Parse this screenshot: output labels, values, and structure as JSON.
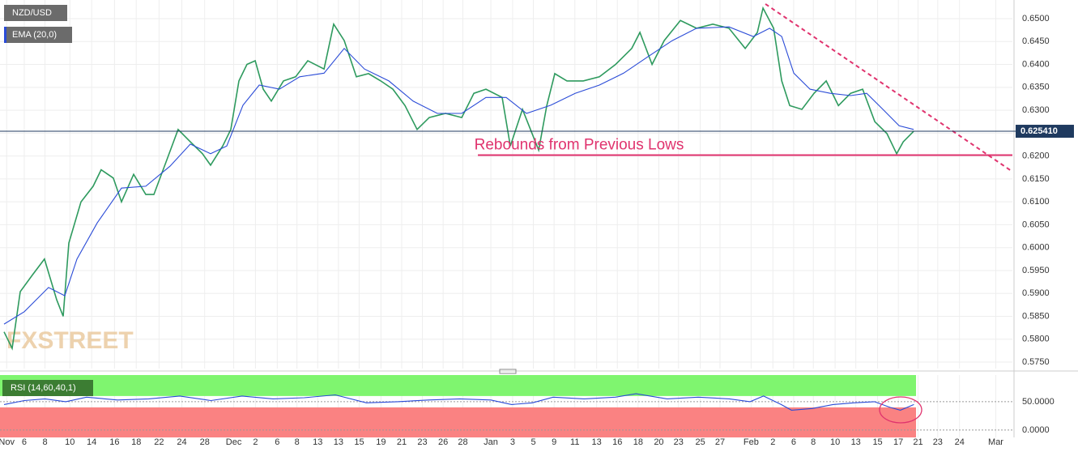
{
  "chart_data": [
    {
      "type": "line",
      "watermark": "FXSTREET",
      "series": [
        {
          "name": "NZD/USD",
          "color": "#2e9a5e",
          "x": [
            -1.95,
            -1.17,
            -0.39,
            0.78,
            1.95,
            3.13,
            3.75,
            4.3,
            5.47,
            6.64,
            7.42,
            8.59,
            9.38,
            10.55,
            11.72,
            12.5,
            13.67,
            14.84,
            16.02,
            17.19,
            17.97,
            19.14,
            19.92,
            20.7,
            21.48,
            22.27,
            23.05,
            23.83,
            25,
            26.17,
            27.34,
            28.91,
            29.84,
            30.86,
            32.03,
            33.2,
            34.38,
            35.55,
            36.72,
            37.89,
            39.06,
            40.63,
            42.19,
            43.36,
            44.53,
            46.09,
            46.88,
            48.05,
            49.61,
            50.39,
            51.17,
            52.34,
            53.91,
            55.47,
            57.03,
            58.59,
            59.38,
            60.55,
            61.72,
            63.28,
            64.84,
            66.41,
            67.97,
            69.53,
            70.7,
            71.25,
            72.27,
            73.05,
            73.83,
            75,
            76.17,
            77.34,
            78.52,
            79.69,
            80.86,
            82.03,
            83.2,
            84.14,
            84.77,
            85.78
          ],
          "values": [
            0.5816,
            0.578,
            0.5904,
            0.594,
            0.5975,
            0.5886,
            0.585,
            0.601,
            0.61,
            0.6134,
            0.617,
            0.6152,
            0.61,
            0.616,
            0.6116,
            0.6116,
            0.6187,
            0.6258,
            0.6231,
            0.6205,
            0.618,
            0.6222,
            0.6258,
            0.6364,
            0.64,
            0.6408,
            0.6346,
            0.632,
            0.6364,
            0.6373,
            0.6408,
            0.639,
            0.6488,
            0.6452,
            0.6373,
            0.638,
            0.6364,
            0.6346,
            0.631,
            0.6258,
            0.6284,
            0.6293,
            0.6284,
            0.6337,
            0.6346,
            0.6328,
            0.6222,
            0.6302,
            0.6213,
            0.631,
            0.638,
            0.6364,
            0.6364,
            0.6373,
            0.64,
            0.6435,
            0.647,
            0.64,
            0.6452,
            0.6496,
            0.6479,
            0.6488,
            0.6479,
            0.6435,
            0.647,
            0.6523,
            0.6479,
            0.6364,
            0.631,
            0.6302,
            0.6337,
            0.6364,
            0.631,
            0.6337,
            0.6346,
            0.6275,
            0.6249,
            0.6205,
            0.6231,
            0.6254
          ]
        },
        {
          "name": "EMA (20,0)",
          "color": "#2a4bd7",
          "x": [
            -1.95,
            0,
            2.34,
            3.91,
            5.08,
            7.03,
            9.38,
            11.72,
            14.06,
            16.02,
            17.97,
            19.53,
            21.09,
            22.66,
            24.61,
            26.56,
            28.91,
            30.86,
            32.81,
            35.16,
            37.5,
            39.84,
            42.19,
            44.53,
            46.48,
            48.44,
            50.78,
            53.13,
            55.47,
            57.81,
            60.16,
            62.5,
            64.84,
            67.97,
            70.31,
            71.88,
            73.05,
            74.22,
            75.78,
            77.73,
            79.69,
            81.25,
            82.81,
            84.38,
            85.78
          ],
          "values": [
            0.5833,
            0.586,
            0.5913,
            0.5895,
            0.5975,
            0.6054,
            0.613,
            0.6134,
            0.6178,
            0.6226,
            0.6205,
            0.6222,
            0.6311,
            0.6355,
            0.6346,
            0.6373,
            0.6381,
            0.6435,
            0.639,
            0.6364,
            0.632,
            0.6293,
            0.6293,
            0.6328,
            0.6328,
            0.6293,
            0.6311,
            0.6337,
            0.6355,
            0.6381,
            0.6417,
            0.6452,
            0.6479,
            0.6482,
            0.6461,
            0.6479,
            0.6461,
            0.6381,
            0.6346,
            0.6337,
            0.6332,
            0.6337,
            0.6302,
            0.6266,
            0.6258
          ]
        }
      ],
      "last_price": {
        "value": 0.62541,
        "label": "0.625410",
        "color": "#1f3a5f"
      },
      "support": {
        "text": "Rebounds from Previous Lows",
        "value": 0.6202,
        "x_start": 43.75,
        "color": "#e0336e"
      },
      "trendline": {
        "x": [
          71.48,
          95.3
        ],
        "values": [
          0.6532,
          0.6166
        ],
        "color": "#e0336e"
      },
      "xlim": [
        -2.34,
        95.3
      ],
      "ylim": [
        0.57359,
        0.65407
      ],
      "yticks": [
        {
          "value": 0.575,
          "label": "0.5750"
        },
        {
          "value": 0.58,
          "label": "0.5800"
        },
        {
          "value": 0.585,
          "label": "0.5850"
        },
        {
          "value": 0.59,
          "label": "0.5900"
        },
        {
          "value": 0.595,
          "label": "0.5950"
        },
        {
          "value": 0.6,
          "label": "0.6000"
        },
        {
          "value": 0.605,
          "label": "0.6050"
        },
        {
          "value": 0.61,
          "label": "0.6100"
        },
        {
          "value": 0.615,
          "label": "0.6150"
        },
        {
          "value": 0.62,
          "label": "0.6200"
        },
        {
          "value": 0.625,
          "label": "0.6250"
        },
        {
          "value": 0.63,
          "label": "0.6300"
        },
        {
          "value": 0.635,
          "label": "0.6350"
        },
        {
          "value": 0.64,
          "label": "0.6400"
        },
        {
          "value": 0.645,
          "label": "0.6450"
        },
        {
          "value": 0.65,
          "label": "0.6500"
        }
      ],
      "xticks": [
        {
          "value": -1.7,
          "label": "Nov"
        },
        {
          "value": 0,
          "label": "6"
        },
        {
          "value": 2,
          "label": "8"
        },
        {
          "value": 4.4,
          "label": "10"
        },
        {
          "value": 6.5,
          "label": "14"
        },
        {
          "value": 8.7,
          "label": "16"
        },
        {
          "value": 10.8,
          "label": "18"
        },
        {
          "value": 13,
          "label": "22"
        },
        {
          "value": 15.2,
          "label": "24"
        },
        {
          "value": 17.4,
          "label": "28"
        },
        {
          "value": 20.2,
          "label": "Dec"
        },
        {
          "value": 22.3,
          "label": "2"
        },
        {
          "value": 24.4,
          "label": "6"
        },
        {
          "value": 26.3,
          "label": "8"
        },
        {
          "value": 28.3,
          "label": "13"
        },
        {
          "value": 30.3,
          "label": "13"
        },
        {
          "value": 32.3,
          "label": "15"
        },
        {
          "value": 34.4,
          "label": "19"
        },
        {
          "value": 36.4,
          "label": "21"
        },
        {
          "value": 38.4,
          "label": "23"
        },
        {
          "value": 40.4,
          "label": "26"
        },
        {
          "value": 42.3,
          "label": "28"
        },
        {
          "value": 45,
          "label": "Jan"
        },
        {
          "value": 47.1,
          "label": "3"
        },
        {
          "value": 49.1,
          "label": "5"
        },
        {
          "value": 51.1,
          "label": "9"
        },
        {
          "value": 53.1,
          "label": "11"
        },
        {
          "value": 55.2,
          "label": "13"
        },
        {
          "value": 57.2,
          "label": "16"
        },
        {
          "value": 59.2,
          "label": "18"
        },
        {
          "value": 61.2,
          "label": "20"
        },
        {
          "value": 63.1,
          "label": "23"
        },
        {
          "value": 65.2,
          "label": "25"
        },
        {
          "value": 67.1,
          "label": "27"
        },
        {
          "value": 70.1,
          "label": "Feb"
        },
        {
          "value": 72.2,
          "label": "2"
        },
        {
          "value": 74.2,
          "label": "6"
        },
        {
          "value": 76.1,
          "label": "8"
        },
        {
          "value": 78.2,
          "label": "10"
        },
        {
          "value": 80.2,
          "label": "13"
        },
        {
          "value": 82.3,
          "label": "15"
        },
        {
          "value": 84.3,
          "label": "17"
        },
        {
          "value": 86.2,
          "label": "21"
        },
        {
          "value": 88.1,
          "label": "23"
        },
        {
          "value": 90.2,
          "label": "24"
        },
        {
          "value": 93.7,
          "label": "Mar"
        }
      ],
      "grid": true
    },
    {
      "type": "line",
      "series": [
        {
          "name": "RSI (14,60,40,1)",
          "color": "#2a4bd7",
          "x": [
            -1.95,
            0,
            2,
            4,
            6,
            9,
            12,
            15,
            18,
            21,
            24,
            27,
            30,
            33,
            36,
            39,
            42,
            45,
            47,
            49,
            51,
            54,
            57,
            59,
            62,
            65,
            68,
            70,
            71.3,
            73,
            74,
            76,
            78,
            80,
            82,
            83.5,
            84.5,
            85.8
          ],
          "values": [
            45,
            52,
            55,
            50,
            58,
            53,
            55,
            60,
            52,
            60,
            55,
            57,
            62,
            48,
            50,
            53,
            55,
            53,
            45,
            48,
            58,
            55,
            58,
            64,
            55,
            58,
            55,
            50,
            60,
            45,
            35,
            38,
            45,
            48,
            50,
            40,
            35,
            45
          ]
        }
      ],
      "zones": {
        "upper": 60,
        "lower": 40,
        "upper_color": "#7ff56f",
        "lower_color": "#fa8282"
      },
      "ylim": [
        -13,
        97
      ],
      "yticks": [
        {
          "value": 0,
          "label": "0.0000"
        },
        {
          "value": 50,
          "label": "50.0000"
        }
      ]
    }
  ]
}
